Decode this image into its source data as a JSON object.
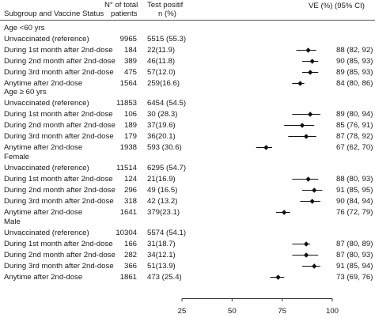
{
  "header": {
    "subgroup": "Subgroup and Vaccine Status",
    "total_line1": "N° of total",
    "total_line2": "patients",
    "positive_line1": "Test positif",
    "positive_line2": "n (%)",
    "ve": "VE (%) (95% CI)"
  },
  "chart_data": {
    "type": "forest",
    "x_ticks": [
      "25",
      "50",
      "75",
      "100"
    ],
    "xlim": [
      25,
      100
    ],
    "groups": [
      {
        "label": "Age <60 yrs",
        "rows": [
          {
            "label": "Unvaccinated (reference)",
            "total": "9965",
            "positive": "5515 (55.3)",
            "ve_text": ""
          },
          {
            "label": "During 1st month after 2nd-dose",
            "total": "184",
            "positive": "22(11.9)",
            "ve_text": "88 (82, 92)",
            "ve": 88,
            "lo": 82,
            "hi": 92
          },
          {
            "label": "During 2nd month after 2nd-dose",
            "total": "389",
            "positive": "46(11.8)",
            "ve_text": "90 (85, 93)",
            "ve": 90,
            "lo": 85,
            "hi": 93
          },
          {
            "label": "During 3rd month after 2nd-dose",
            "total": "475",
            "positive": "57(12.0)",
            "ve_text": "89 (85, 93)",
            "ve": 89,
            "lo": 85,
            "hi": 93
          },
          {
            "label": "Anytime after 2nd-dose",
            "total": "1564",
            "positive": "259(16.6)",
            "ve_text": "84 (80, 86)",
            "ve": 84,
            "lo": 80,
            "hi": 86
          }
        ]
      },
      {
        "label": "Age ≥ 60 yrs",
        "rows": [
          {
            "label": "Unvaccinated (reference)",
            "total": "11853",
            "positive": "6454 (54.5)",
            "ve_text": ""
          },
          {
            "label": "During 1st month after 2nd-dose",
            "total": "106",
            "positive": "30 (28.3)",
            "ve_text": "89 (80, 94)",
            "ve": 89,
            "lo": 80,
            "hi": 94
          },
          {
            "label": "During 2nd month after 2nd-dose",
            "total": "189",
            "positive": "37(19.6)",
            "ve_text": "85 (76, 91)",
            "ve": 85,
            "lo": 76,
            "hi": 91
          },
          {
            "label": "During 3rd month after 2nd-dose",
            "total": "179",
            "positive": "36(20.1)",
            "ve_text": "87 (78, 92)",
            "ve": 87,
            "lo": 78,
            "hi": 92
          },
          {
            "label": "Anytime after 2nd-dose",
            "total": "1938",
            "positive": "593 (30.6)",
            "ve_text": "67 (62, 70)",
            "ve": 67,
            "lo": 62,
            "hi": 70
          }
        ]
      },
      {
        "label": "Female",
        "rows": [
          {
            "label": "Unvaccinated (reference)",
            "total": "11514",
            "positive": "6295 (54.7)",
            "ve_text": ""
          },
          {
            "label": "During 1st month after 2nd-dose",
            "total": "124",
            "positive": "21(16.9)",
            "ve_text": "88 (80, 93)",
            "ve": 88,
            "lo": 80,
            "hi": 93
          },
          {
            "label": "During  2nd month after 2nd-dose",
            "total": "296",
            "positive": "49 (16.5)",
            "ve_text": "91 (85, 95)",
            "ve": 91,
            "lo": 85,
            "hi": 95
          },
          {
            "label": "During 3rd month after 2nd-dose",
            "total": "318",
            "positive": "42 (13.2)",
            "ve_text": "90 (84, 94)",
            "ve": 90,
            "lo": 84,
            "hi": 94
          },
          {
            "label": "Anytime after 2nd-dose",
            "total": "1641",
            "positive": "379(23.1)",
            "ve_text": "76 (72, 79)",
            "ve": 76,
            "lo": 72,
            "hi": 79
          }
        ]
      },
      {
        "label": "Male",
        "rows": [
          {
            "label": "Unvaccinated (reference)",
            "total": "10304",
            "positive": "5574 (54.1)",
            "ve_text": ""
          },
          {
            "label": "During 1st month after 2nd-dose",
            "total": "166",
            "positive": "31(18.7)",
            "ve_text": "87 (80, 89)",
            "ve": 87,
            "lo": 80,
            "hi": 89
          },
          {
            "label": "During 2nd month after 2nd-dose",
            "total": "282",
            "positive": "34(12.1)",
            "ve_text": "87 (80, 93)",
            "ve": 87,
            "lo": 80,
            "hi": 93
          },
          {
            "label": "During 3rd month after 2nd-dose",
            "total": "366",
            "positive": "51(13.9)",
            "ve_text": "91 (85, 94)",
            "ve": 91,
            "lo": 85,
            "hi": 94
          },
          {
            "label": "Anytime after 2nd-dose",
            "total": "1861",
            "positive": "473 (25.4)",
            "ve_text": "73 (69, 76)",
            "ve": 73,
            "lo": 69,
            "hi": 76
          }
        ]
      }
    ]
  }
}
